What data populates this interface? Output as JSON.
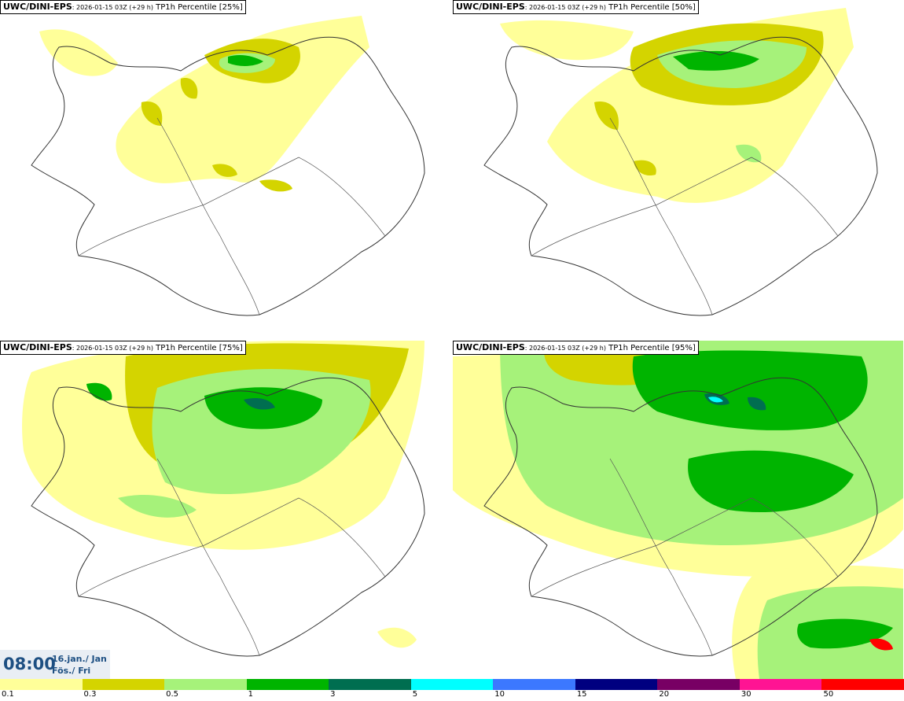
{
  "panels": [
    {
      "model": "UWC/DINI-EPS",
      "run": ": 2026-01-15 03Z (+29 h)",
      "product": "TP1h Percentile [25%]"
    },
    {
      "model": "UWC/DINI-EPS",
      "run": ": 2026-01-15 03Z (+29 h)",
      "product": "TP1h Percentile [50%]"
    },
    {
      "model": "UWC/DINI-EPS",
      "run": ": 2026-01-15 03Z (+29 h)",
      "product": "TP1h Percentile [75%]"
    },
    {
      "model": "UWC/DINI-EPS",
      "run": ": 2026-01-15 03Z (+29 h)",
      "product": "TP1h Percentile [95%]"
    }
  ],
  "valid_time": {
    "time": "08:00",
    "date_line1": "16.jan./ Jan",
    "date_line2": "Fös./ Fri"
  },
  "colorbar": {
    "colors": [
      "#ffff99",
      "#d4d400",
      "#a6f27a",
      "#00b400",
      "#006e50",
      "#00ffff",
      "#3c78ff",
      "#000080",
      "#780064",
      "#ff1493",
      "#ff0000"
    ],
    "ticks": [
      "0.1",
      "0.3",
      "0.5",
      "1",
      "3",
      "5",
      "10",
      "15",
      "20",
      "30",
      "50"
    ]
  },
  "colors": {
    "land_outline": "#333333",
    "background": "#ffffff"
  }
}
